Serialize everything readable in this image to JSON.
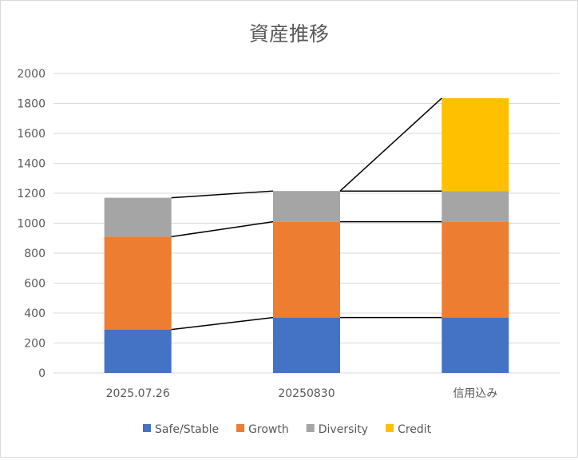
{
  "chart_data": {
    "type": "bar",
    "stacked": true,
    "title": "資産推移",
    "categories": [
      "2025.07.26",
      "20250830",
      "信用込み"
    ],
    "series": [
      {
        "name": "Safe/Stable",
        "color": "#4472C4",
        "values": [
          290,
          370,
          370
        ]
      },
      {
        "name": "Growth",
        "color": "#ED7D31",
        "values": [
          620,
          640,
          640
        ]
      },
      {
        "name": "Diversity",
        "color": "#A5A5A5",
        "values": [
          260,
          205,
          205
        ]
      },
      {
        "name": "Credit",
        "color": "#FFC000",
        "values": [
          0,
          0,
          620
        ]
      }
    ],
    "ylim": [
      0,
      2000
    ],
    "yticks": [
      "0",
      "200",
      "400",
      "600",
      "800",
      "1000",
      "1200",
      "1400",
      "1600",
      "1800",
      "2000"
    ],
    "grid": true,
    "legend": "bottom",
    "series_lines": true
  }
}
